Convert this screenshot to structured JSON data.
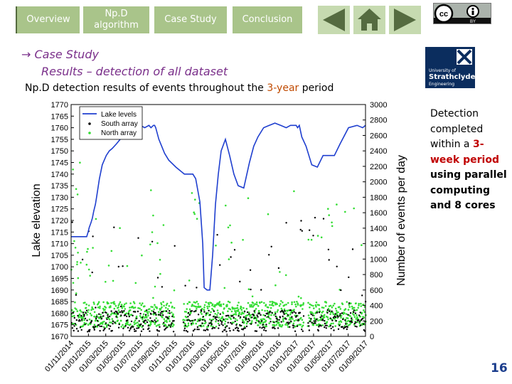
{
  "nav": {
    "overview": "Overview",
    "algorithm_line1": "Np.D",
    "algorithm_line2": "algorithm",
    "case_study": "Case Study",
    "conclusion": "Conclusion"
  },
  "icons": {
    "back": "triangle-left-icon",
    "home": "house-icon",
    "forward": "triangle-right-icon"
  },
  "license": {
    "cc": "cc",
    "by": "BY"
  },
  "logo": {
    "line1": "University of",
    "line2": "Strathclyde",
    "line3": "Engineering"
  },
  "section": {
    "title_line1": "Case Study",
    "title_line2": "Results – detection of all dataset"
  },
  "subtitle": {
    "before": "Np.D detection results of events throughout the ",
    "highlight": "3-year",
    "after": " period"
  },
  "side_text": {
    "line1": "Detection",
    "line2": "completed",
    "line3_a": "within a ",
    "line3_b": "3-",
    "line4": "week period",
    "line5": "using parallel",
    "line6": "computing",
    "line7": "and 8 cores"
  },
  "page_number": "16",
  "chart_data": {
    "type": "line",
    "xlabel": "",
    "ylabel_left": "Lake elevation",
    "ylabel_right": "Number of events per day",
    "ylim_left": [
      1670,
      1770
    ],
    "ylim_right": [
      0,
      3000
    ],
    "y_ticks_left": [
      "1670",
      "1675",
      "1680",
      "1685",
      "1690",
      "1695",
      "1700",
      "1705",
      "1710",
      "1715",
      "1720",
      "1725",
      "1730",
      "1735",
      "1740",
      "1745",
      "1750",
      "1755",
      "1760",
      "1765",
      "1770"
    ],
    "y_ticks_right": [
      "0",
      "200",
      "400",
      "600",
      "800",
      "1000",
      "1200",
      "1400",
      "1600",
      "1800",
      "2000",
      "2200",
      "2400",
      "2600",
      "2800",
      "3000"
    ],
    "x_ticks": [
      "01/11/2014",
      "01/01/2015",
      "01/03/2015",
      "01/05/2015",
      "01/07/2015",
      "01/09/2015",
      "01/11/2015",
      "01/01/2016",
      "01/03/2016",
      "01/05/2016",
      "01/07/2016",
      "01/09/2016",
      "01/11/2016",
      "01/01/2017",
      "01/03/2017",
      "01/05/2017",
      "01/07/2017",
      "01/09/2017"
    ],
    "legend": [
      "Lake levels",
      "South array",
      "North array"
    ],
    "legend_position": "top-left",
    "colors": {
      "lake": "#1f3fcf",
      "south": "#000000",
      "north": "#33dd33"
    },
    "lake_levels": {
      "x_days": [
        0,
        12,
        24,
        37,
        40,
        46,
        50,
        55,
        60,
        64,
        70,
        75,
        80,
        86,
        90,
        100,
        110,
        124,
        135,
        145,
        160,
        180,
        200,
        215,
        230,
        245,
        260,
        275,
        282,
        291,
        295,
        299,
        310,
        320,
        330,
        345,
        370,
        400,
        430,
        440,
        455,
        465,
        470,
        480,
        490,
        500,
        510,
        520,
        530,
        545,
        560,
        575,
        590,
        610,
        630,
        645,
        660,
        680,
        700,
        720,
        740,
        760,
        775,
        785,
        795,
        800,
        806,
        815,
        830,
        850,
        870,
        890,
        910,
        930,
        950,
        980,
        1010,
        1030,
        1040
      ],
      "values": [
        1713,
        1713,
        1713,
        1713,
        1713,
        1713,
        1713,
        1713,
        1715,
        1717,
        1719,
        1721,
        1724,
        1727,
        1730,
        1738,
        1744,
        1748,
        1750,
        1751,
        1753,
        1756,
        1758,
        1761,
        1762,
        1761,
        1760,
        1761,
        1760,
        1761,
        1761,
        1760,
        1755,
        1752,
        1749,
        1746,
        1743,
        1740,
        1740,
        1738,
        1728,
        1710,
        1691,
        1690,
        1690,
        1705,
        1727,
        1740,
        1750,
        1755,
        1748,
        1740,
        1735,
        1734,
        1745,
        1752,
        1756,
        1760,
        1761,
        1762,
        1761,
        1760,
        1761,
        1761,
        1761,
        1760,
        1761,
        1756,
        1752,
        1744,
        1743,
        1748,
        1748,
        1748,
        1753,
        1760,
        1761,
        1760,
        1761
      ]
    },
    "south_array_series": {
      "baseline_events_per_day": 250
    },
    "north_array_series": {
      "baseline_events_per_day": 250
    }
  }
}
